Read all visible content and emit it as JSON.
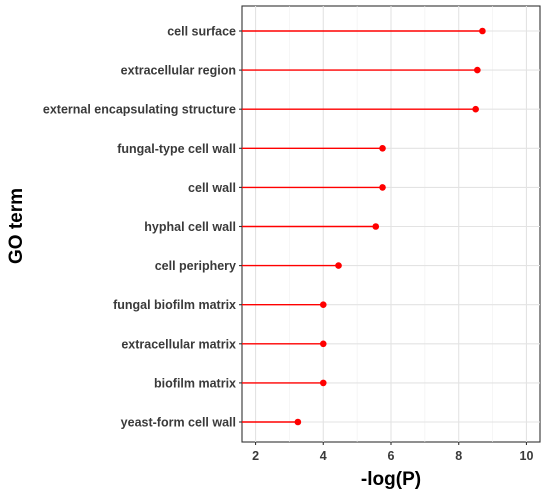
{
  "chart_data": {
    "type": "lollipop",
    "xlabel": "-log(P)",
    "ylabel": "GO term",
    "xlim": [
      1.6,
      10.4
    ],
    "x_ticks": [
      2,
      4,
      6,
      8,
      10
    ],
    "grid": true,
    "legend": "none",
    "color": "#ff0000",
    "categories": [
      "cell surface",
      "extracellular region",
      "external encapsulating structure",
      "fungal-type cell wall",
      "cell wall",
      "hyphal cell wall",
      "cell periphery",
      "fungal biofilm matrix",
      "extracellular matrix",
      "biofilm matrix",
      "yeast-form cell wall"
    ],
    "values": [
      8.7,
      8.55,
      8.5,
      5.75,
      5.75,
      5.55,
      4.45,
      4.0,
      4.0,
      4.0,
      3.25
    ]
  }
}
